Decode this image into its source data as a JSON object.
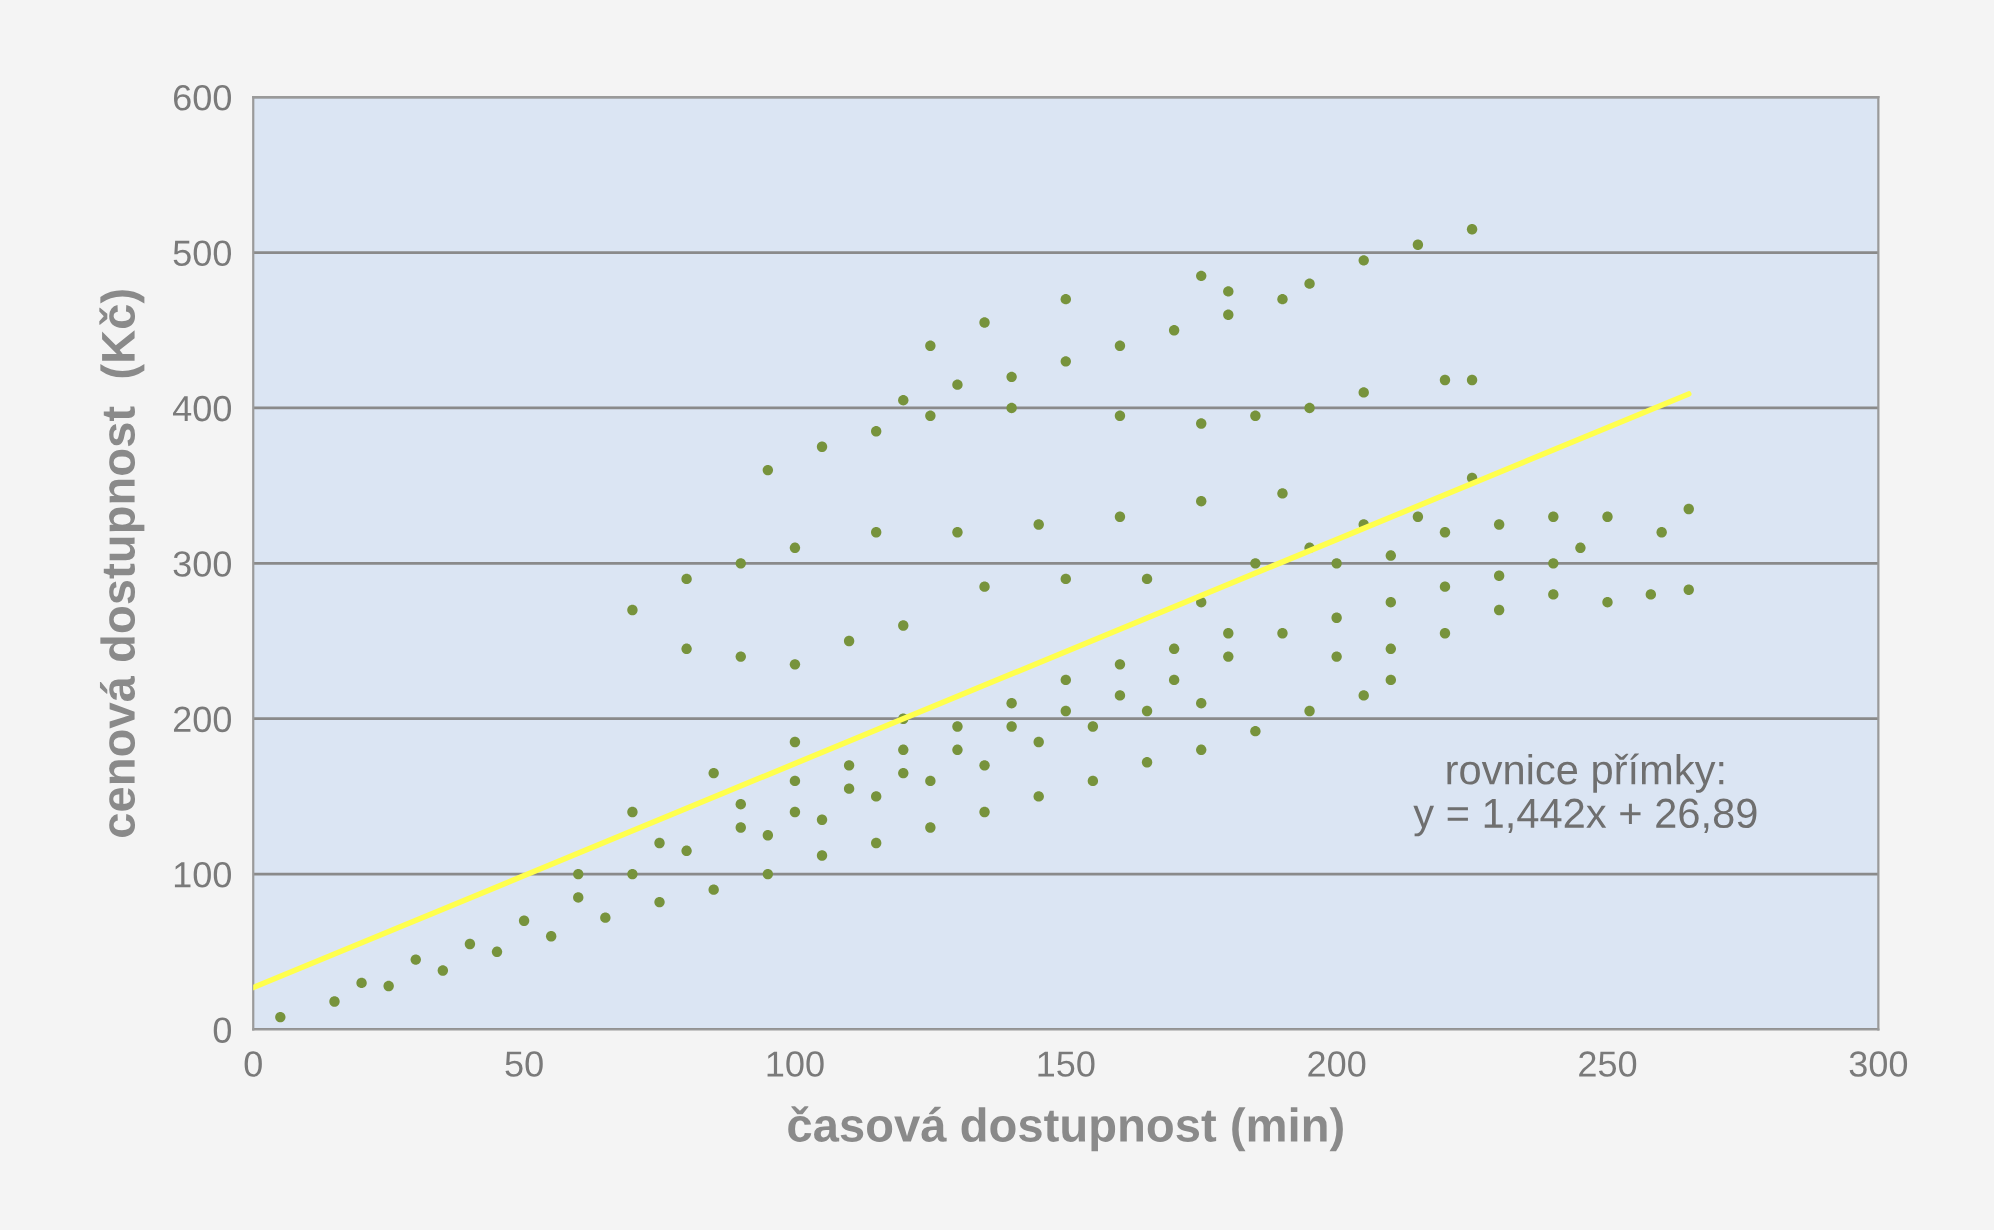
{
  "chart_data": {
    "type": "scatter",
    "xlabel": "časová dostupnost (min)",
    "ylabel": "cenová dostupnost  (Kč)",
    "xlim": [
      0,
      300
    ],
    "xticks": [
      0,
      50,
      100,
      150,
      200,
      250,
      300
    ],
    "ylim": [
      0,
      600
    ],
    "yticks": [
      0,
      100,
      200,
      300,
      400,
      500,
      600
    ],
    "grid": "y",
    "annotations": [
      "rovnice přímky:",
      "y = 1,442x + 26,89"
    ],
    "series": [
      {
        "marker": "circle",
        "color": "#77933c",
        "x": [
          5,
          15,
          25,
          35,
          45,
          55,
          65,
          75,
          85,
          95,
          105,
          115,
          125,
          135,
          145,
          155,
          165,
          175,
          185,
          195,
          205,
          210,
          20,
          30,
          40,
          50,
          60,
          70,
          80,
          90,
          100,
          110,
          120,
          130,
          140,
          150,
          160,
          170,
          180,
          190,
          200,
          210,
          220,
          230,
          240,
          245,
          60,
          75,
          90,
          100,
          110,
          120,
          130,
          140,
          150,
          160,
          170,
          180,
          95,
          105,
          115,
          125,
          135,
          145,
          155,
          165,
          175,
          70,
          85,
          100,
          120,
          200,
          210,
          220,
          230,
          240,
          250,
          260,
          265,
          230,
          240,
          250,
          258,
          265,
          200,
          210,
          220,
          70,
          80,
          90,
          100,
          110,
          120,
          135,
          150,
          165,
          175,
          185,
          195,
          205,
          215,
          225,
          80,
          90,
          100,
          115,
          130,
          145,
          160,
          175,
          190,
          95,
          105,
          115,
          125,
          140,
          160,
          175,
          185,
          195,
          205,
          220,
          225,
          120,
          130,
          140,
          150,
          160,
          170,
          180,
          190,
          195,
          205,
          215,
          225,
          150,
          175,
          180,
          125,
          135
        ],
        "values": [
          8,
          18,
          28,
          38,
          50,
          60,
          72,
          82,
          90,
          100,
          112,
          120,
          130,
          140,
          150,
          160,
          172,
          180,
          192,
          205,
          215,
          225,
          30,
          45,
          55,
          70,
          85,
          100,
          115,
          130,
          140,
          155,
          165,
          180,
          195,
          205,
          215,
          225,
          240,
          255,
          265,
          275,
          285,
          292,
          300,
          310,
          100,
          120,
          145,
          160,
          170,
          180,
          195,
          210,
          225,
          235,
          245,
          255,
          125,
          135,
          150,
          160,
          170,
          185,
          195,
          205,
          210,
          140,
          165,
          185,
          200,
          300,
          305,
          320,
          325,
          330,
          330,
          320,
          335,
          270,
          280,
          275,
          280,
          283,
          240,
          245,
          255,
          270,
          245,
          240,
          235,
          250,
          260,
          285,
          290,
          290,
          275,
          300,
          310,
          325,
          330,
          355,
          290,
          300,
          310,
          320,
          320,
          325,
          330,
          340,
          345,
          360,
          375,
          385,
          395,
          400,
          395,
          390,
          395,
          400,
          410,
          418,
          418,
          405,
          415,
          420,
          430,
          440,
          450,
          460,
          470,
          480,
          495,
          505,
          515,
          470,
          485,
          475,
          440,
          455
        ]
      },
      {
        "type": "line",
        "color": "#ffff4d",
        "x": [
          0,
          265
        ],
        "values": [
          27,
          409
        ]
      }
    ]
  }
}
